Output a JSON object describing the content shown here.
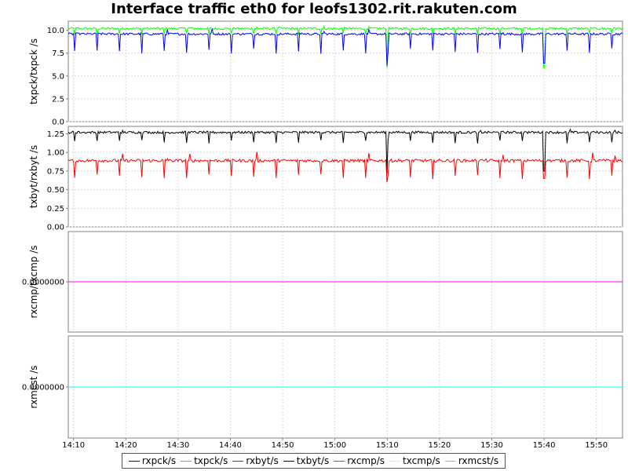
{
  "chart_data": {
    "title": "Interface traffic eth0 for leofs1302.rit.rakuten.com",
    "type": "line",
    "x_ticks": [
      "14:10",
      "14:20",
      "14:30",
      "14:40",
      "14:50",
      "15:00",
      "15:10",
      "15:20",
      "15:30",
      "15:40",
      "15:50"
    ],
    "xlim": [
      "14:09",
      "15:55"
    ],
    "grid": true,
    "legend_position": "bottom",
    "legend": [
      {
        "name": "rxpck/s",
        "color": "#0000ff"
      },
      {
        "name": "txpck/s",
        "color": "#00ff00"
      },
      {
        "name": "rxbyt/s",
        "color": "#ff0000"
      },
      {
        "name": "txbyt/s",
        "color": "#000000"
      },
      {
        "name": "rxcmp/s",
        "color": "#ff00ff"
      },
      {
        "name": "txcmp/s",
        "color": "#ffff00"
      },
      {
        "name": "rxmcst/s",
        "color": "#00ffff"
      }
    ],
    "panels": [
      {
        "ylabel": "txpck/txpck /s",
        "ylim": [
          0,
          11
        ],
        "y_ticks": [
          "0.0",
          "2.5",
          "5.0",
          "7.5",
          "10.0"
        ],
        "y_tick_values": [
          0,
          2.5,
          5,
          7.5,
          10
        ],
        "series": [
          {
            "name": "txpck/s",
            "color": "#00ff00",
            "base": 10.2,
            "noise": 0.12,
            "dip": 0.7,
            "spike": 0.25,
            "special": [
              {
                "t": "15:10",
                "v": 5.9
              },
              {
                "t": "15:40",
                "v": 5.9
              }
            ]
          },
          {
            "name": "rxpck/s",
            "color": "#0000ff",
            "base": 9.6,
            "noise": 0.12,
            "dip": 2.2,
            "spike": 0.6,
            "special": [
              {
                "t": "15:10",
                "v": 6.1
              },
              {
                "t": "15:40",
                "v": 6.4
              }
            ]
          }
        ]
      },
      {
        "ylabel": "txbyt/rxbyt /s",
        "ylim": [
          0,
          1.35
        ],
        "y_ticks": [
          "0.00",
          "0.25",
          "0.50",
          "0.75",
          "1.00",
          "1.25"
        ],
        "y_tick_values": [
          0,
          0.25,
          0.5,
          0.75,
          1.0,
          1.25
        ],
        "series": [
          {
            "name": "txbyt/s",
            "color": "#000000",
            "base": 1.27,
            "noise": 0.015,
            "dip": 0.15,
            "spike": 0.04,
            "special": [
              {
                "t": "15:10",
                "v": 0.72
              },
              {
                "t": "15:40",
                "v": 0.75
              }
            ]
          },
          {
            "name": "rxbyt/s",
            "color": "#ff0000",
            "base": 0.89,
            "noise": 0.02,
            "dip": 0.25,
            "spike": 0.12,
            "special": [
              {
                "t": "15:10",
                "v": 0.6
              },
              {
                "t": "15:40",
                "v": 0.65
              }
            ]
          }
        ]
      },
      {
        "ylabel": "rxcmp/txcmp /s",
        "ylim": [
          -1,
          1
        ],
        "y_ticks": [
          "0.0000000"
        ],
        "y_tick_values": [
          0
        ],
        "series": [
          {
            "name": "txcmp/s",
            "color": "#ffff00",
            "base": 0,
            "noise": 0,
            "dip": 0,
            "spike": 0,
            "special": []
          },
          {
            "name": "rxcmp/s",
            "color": "#ff00ff",
            "base": 0,
            "noise": 0,
            "dip": 0,
            "spike": 0,
            "special": []
          }
        ]
      },
      {
        "ylabel": "rxmcst /s",
        "ylim": [
          -1,
          1
        ],
        "y_ticks": [
          "0.0000000"
        ],
        "y_tick_values": [
          0
        ],
        "series": [
          {
            "name": "rxmcst/s",
            "color": "#00ffff",
            "base": 0,
            "noise": 0,
            "dip": 0,
            "spike": 0,
            "special": []
          }
        ]
      }
    ]
  }
}
